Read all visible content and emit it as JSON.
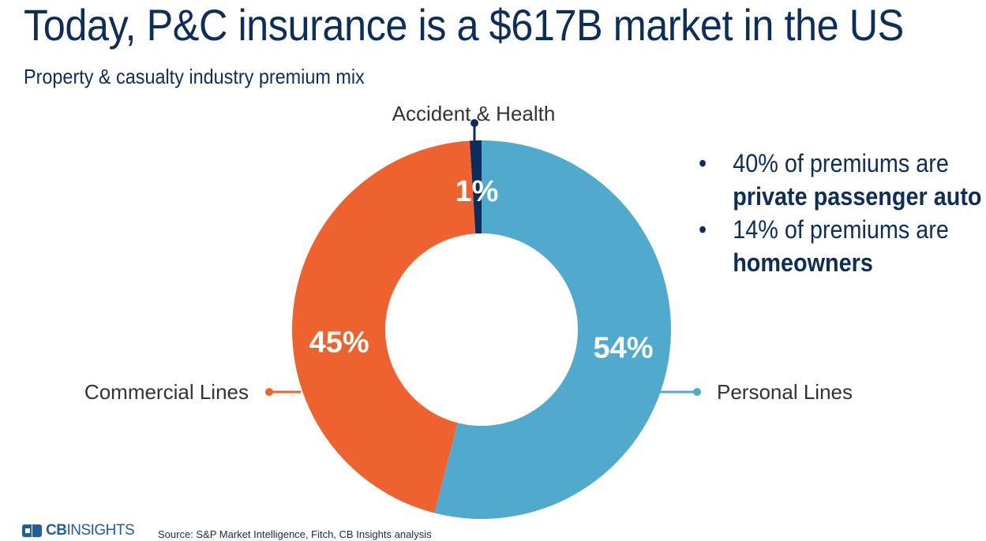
{
  "header": {
    "title": "Today, P&C insurance is a $617B market in the US",
    "subtitle": "Property & casualty industry premium mix"
  },
  "chart_data": {
    "type": "pie",
    "variant": "donut",
    "categories": [
      "Personal Lines",
      "Commercial Lines",
      "Accident & Health"
    ],
    "values": [
      54,
      45,
      1
    ],
    "value_labels": [
      "54%",
      "45%",
      "1%"
    ],
    "colors": [
      "#4faace",
      "#ee6230",
      "#0c2c5e"
    ],
    "unit": "%"
  },
  "bullets": [
    {
      "text": "40% of premiums are",
      "bold": "private passenger auto"
    },
    {
      "text": "14% of premiums are",
      "bold": "homeowners"
    }
  ],
  "bullet_glyph": "•",
  "footer": {
    "logo_bold": "CB",
    "logo_text": "INSIGHTS",
    "source": "Source: S&P Market Intelligence, Fitch, CB Insights analysis"
  }
}
